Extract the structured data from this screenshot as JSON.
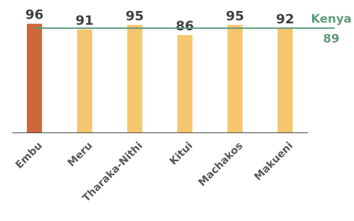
{
  "chart_data": {
    "type": "bar",
    "categories": [
      "Embu",
      "Meru",
      "Tharaka-Nithi",
      "Kitui",
      "Machakos",
      "Makueni"
    ],
    "values": [
      96,
      91,
      95,
      86,
      95,
      92
    ],
    "highlight": "Embu",
    "ylim": [
      0,
      100
    ],
    "grid": false,
    "reference_line": {
      "name": "Kenya",
      "value": 89,
      "label": "89"
    },
    "colors": {
      "highlight_bar": "#d0673a",
      "bar": "#f5c66e",
      "reference_line": "#5e9a78",
      "axis": "#404040"
    }
  }
}
